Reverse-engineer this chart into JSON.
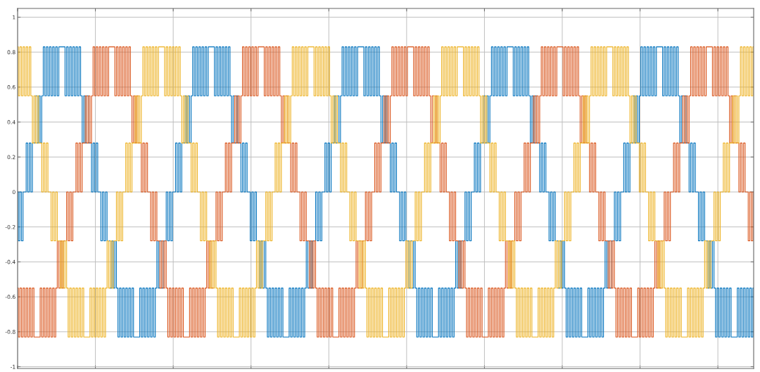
{
  "chart_data": {
    "type": "step",
    "categories": [
      null,
      null,
      null,
      null,
      null,
      null,
      null,
      null,
      null,
      null,
      null,
      null,
      null,
      null,
      null,
      null,
      null,
      null,
      null,
      null,
      null,
      null,
      null,
      null,
      null,
      null,
      null,
      null,
      null,
      null,
      null,
      null,
      null,
      null,
      null,
      null,
      null,
      null,
      null,
      null,
      null,
      null,
      null,
      null,
      null,
      null,
      null,
      null,
      null,
      null,
      null,
      null,
      null,
      null,
      null,
      null,
      null,
      null,
      null,
      null,
      null,
      null,
      null,
      null,
      null,
      null,
      null,
      null,
      null,
      null,
      null,
      null,
      null,
      null,
      null,
      null,
      null,
      null,
      null,
      null,
      null,
      null,
      null,
      null,
      null,
      null,
      null,
      null,
      null,
      null,
      null,
      null,
      null,
      null,
      null,
      null,
      null,
      null,
      null,
      null,
      null,
      null,
      null,
      null,
      null,
      null,
      null,
      null,
      null,
      null,
      null,
      null,
      null,
      null,
      null,
      null,
      null,
      null,
      null,
      null,
      null,
      null,
      null,
      null,
      null,
      null,
      null,
      null,
      null,
      null,
      null,
      null,
      null,
      null,
      null,
      null,
      null,
      null,
      null,
      null,
      null,
      null,
      null,
      null,
      null,
      null,
      null,
      null,
      null,
      null,
      null,
      null,
      null,
      null,
      null,
      null,
      null,
      null,
      null,
      null,
      null,
      null,
      null,
      null,
      null,
      null,
      null,
      null,
      null,
      null,
      null,
      null,
      null,
      null,
      null,
      null,
      null,
      null,
      null,
      null,
      null,
      null,
      null,
      null,
      null,
      null,
      null,
      null,
      null,
      null,
      null,
      null,
      null,
      null,
      null,
      null,
      null,
      null,
      null,
      null,
      null,
      null,
      null,
      null,
      null,
      null,
      null,
      null,
      null,
      null,
      null,
      null,
      null,
      null,
      null,
      null,
      null,
      null,
      null,
      null,
      null,
      null,
      null,
      null,
      null,
      null,
      null,
      null,
      null,
      null,
      null,
      null,
      null,
      null,
      null,
      null,
      null,
      null,
      null,
      null,
      null,
      null,
      null,
      null,
      null,
      null,
      null,
      null,
      null,
      null,
      null,
      null,
      null,
      null,
      null,
      null,
      null,
      null,
      null,
      null,
      null,
      null,
      null,
      null,
      null,
      null,
      null,
      null,
      null,
      null,
      null,
      null,
      null,
      null,
      null,
      null,
      null,
      null,
      null,
      null,
      null,
      null,
      null,
      null,
      null,
      null,
      null,
      null,
      null,
      null,
      null,
      null,
      null,
      null,
      null,
      null,
      null,
      null,
      null,
      null,
      null,
      null,
      null,
      null,
      null,
      null,
      null,
      null,
      null,
      null,
      null,
      null,
      null,
      null,
      null,
      null,
      null,
      null,
      null,
      null,
      null,
      null,
      null,
      null,
      null,
      null,
      null,
      null,
      null,
      null,
      null,
      null,
      null,
      null,
      null,
      null,
      null,
      null,
      null,
      null,
      null,
      null,
      null,
      null,
      null,
      null,
      null,
      null,
      null,
      null,
      null,
      null,
      null,
      null,
      null,
      null,
      null,
      null,
      null,
      null,
      null,
      null,
      null,
      null,
      null,
      null,
      null,
      null,
      null,
      null,
      null,
      null,
      null,
      null,
      null,
      null,
      null,
      null,
      null,
      null,
      null,
      null,
      null,
      null,
      null,
      null,
      null,
      null,
      null,
      null,
      null,
      null,
      null,
      null,
      null,
      null,
      null,
      null,
      null,
      null,
      null,
      null,
      null,
      null,
      null,
      null,
      null,
      null,
      null,
      null,
      null,
      null,
      null,
      null,
      null,
      null,
      null,
      null,
      null,
      null,
      null,
      null,
      null,
      null,
      null,
      null,
      null,
      null,
      null,
      null,
      null,
      null,
      null,
      null,
      null,
      null,
      null,
      null,
      null,
      null,
      null,
      null,
      null,
      null,
      null,
      null,
      null,
      null,
      null,
      null,
      null,
      null,
      null,
      null,
      null,
      null,
      null,
      null,
      null,
      null,
      null,
      null,
      null,
      null,
      null,
      null,
      null,
      null,
      null,
      null,
      null,
      null,
      null,
      null
    ],
    "series": [
      {
        "color": "#0072bd",
        "values": [
          0,
          -0.28,
          0,
          -0.28,
          0,
          0,
          0.28,
          0,
          0.28,
          0,
          0.28,
          0.28,
          0.55,
          0.28,
          0.55,
          0.28,
          0.55,
          0.83,
          0.55,
          0.83,
          0.55,
          0.83,
          0.55,
          0.83,
          0.55,
          0.83,
          0.55,
          0.83,
          0.83,
          0.83,
          0.83,
          0.55,
          0.83,
          0.55,
          0.83,
          0.55,
          0.83,
          0.55,
          0.83,
          0.55,
          0.83,
          0.55,
          0.28,
          0.55,
          0.28,
          0.55,
          0.28,
          0.28,
          0,
          0.28,
          0,
          0.28,
          0,
          0,
          -0.28,
          0,
          -0.28,
          0,
          -0.28,
          -0.28,
          -0.55,
          -0.28,
          -0.55,
          -0.28,
          -0.55,
          -0.83,
          -0.55,
          -0.83,
          -0.55,
          -0.83,
          -0.55,
          -0.83,
          -0.55,
          -0.83,
          -0.55,
          -0.83,
          -0.83,
          -0.83,
          -0.83,
          -0.55,
          -0.83,
          -0.55,
          -0.83,
          -0.55,
          -0.83,
          -0.55,
          -0.83,
          -0.55,
          -0.83,
          -0.55,
          -0.28,
          -0.55,
          -0.28,
          -0.55,
          -0.28,
          -0.28,
          0,
          -0.28,
          0,
          -0.28,
          0,
          0,
          0.28,
          0,
          0.28,
          0,
          0.28,
          0.28,
          0.55,
          0.28,
          0.55,
          0.28,
          0.55,
          0.83,
          0.55,
          0.83,
          0.55,
          0.83,
          0.55,
          0.83,
          0.55,
          0.83,
          0.55,
          0.83,
          0.83,
          0.83,
          0.83,
          0.55,
          0.83,
          0.55,
          0.83,
          0.55,
          0.83,
          0.55,
          0.83,
          0.55,
          0.83,
          0.55,
          0.28,
          0.55,
          0.28,
          0.55,
          0.28,
          0.28,
          0,
          0.28,
          0,
          0.28,
          0,
          0,
          -0.28,
          0,
          -0.28,
          0,
          -0.28,
          -0.28,
          -0.55,
          -0.28,
          -0.55,
          -0.28,
          -0.55,
          -0.83,
          -0.55,
          -0.83,
          -0.55,
          -0.83,
          -0.55,
          -0.83,
          -0.55,
          -0.83,
          -0.55,
          -0.83,
          -0.83,
          -0.83,
          -0.83,
          -0.55,
          -0.83,
          -0.55,
          -0.83,
          -0.55,
          -0.83,
          -0.55,
          -0.83,
          -0.55,
          -0.83,
          -0.55,
          -0.28,
          -0.55,
          -0.28,
          -0.55,
          -0.28,
          -0.28,
          0,
          -0.28,
          0,
          -0.28,
          0,
          0,
          0.28,
          0,
          0.28,
          0,
          0.28,
          0.28,
          0.55,
          0.28,
          0.55,
          0.28,
          0.55,
          0.83,
          0.55,
          0.83,
          0.55,
          0.83,
          0.55,
          0.83,
          0.55,
          0.83,
          0.55,
          0.83,
          0.83,
          0.83,
          0.83,
          0.55,
          0.83,
          0.55,
          0.83,
          0.55,
          0.83,
          0.55,
          0.83,
          0.55,
          0.83,
          0.55,
          0.28,
          0.55,
          0.28,
          0.55,
          0.28,
          0.28,
          0,
          0.28,
          0,
          0.28,
          0,
          0,
          -0.28,
          0,
          -0.28,
          0,
          -0.28,
          -0.28,
          -0.55,
          -0.28,
          -0.55,
          -0.28,
          -0.55,
          -0.83,
          -0.55,
          -0.83,
          -0.55,
          -0.83,
          -0.55,
          -0.83,
          -0.55,
          -0.83,
          -0.55,
          -0.83,
          -0.83,
          -0.83,
          -0.83,
          -0.55,
          -0.83,
          -0.55,
          -0.83,
          -0.55,
          -0.83,
          -0.55,
          -0.83,
          -0.55,
          -0.83,
          -0.55,
          -0.28,
          -0.55,
          -0.28,
          -0.55,
          -0.28,
          -0.28,
          0,
          -0.28,
          0,
          -0.28,
          0,
          0,
          0.28,
          0,
          0.28,
          0,
          0.28,
          0.28,
          0.55,
          0.28,
          0.55,
          0.28,
          0.55,
          0.83,
          0.55,
          0.83,
          0.55,
          0.83,
          0.55,
          0.83,
          0.55,
          0.83,
          0.55,
          0.83,
          0.83,
          0.83,
          0.83,
          0.55,
          0.83,
          0.55,
          0.83,
          0.55,
          0.83,
          0.55,
          0.83,
          0.55,
          0.83,
          0.55,
          0.28,
          0.55,
          0.28,
          0.55,
          0.28,
          0.28,
          0,
          0.28,
          0,
          0.28,
          0,
          0,
          -0.28,
          0,
          -0.28,
          0,
          -0.28,
          -0.28,
          -0.55,
          -0.28,
          -0.55,
          -0.28,
          -0.55,
          -0.83,
          -0.55,
          -0.83,
          -0.55,
          -0.83,
          -0.55,
          -0.83,
          -0.55,
          -0.83,
          -0.55,
          -0.83,
          -0.83,
          -0.83,
          -0.83,
          -0.55,
          -0.83,
          -0.55,
          -0.83,
          -0.55,
          -0.83,
          -0.55,
          -0.83,
          -0.55,
          -0.83,
          -0.55,
          -0.28,
          -0.55,
          -0.28,
          -0.55,
          -0.28,
          -0.28,
          0,
          -0.28,
          0,
          -0.28,
          0,
          0,
          0.28,
          0,
          0.28,
          0,
          0.28,
          0.28,
          0.55,
          0.28,
          0.55,
          0.28,
          0.55,
          0.83,
          0.55,
          0.83,
          0.55,
          0.83,
          0.55,
          0.83,
          0.55,
          0.83,
          0.55,
          0.83,
          0.83,
          0.83,
          0.83,
          0.55,
          0.83,
          0.55,
          0.83,
          0.55,
          0.83,
          0.55,
          0.83,
          0.55,
          0.83,
          0.55,
          0.28,
          0.55,
          0.28,
          0.55,
          0.28,
          0.28,
          0,
          0.28,
          0,
          0.28,
          0,
          0,
          -0.28,
          0,
          -0.28,
          0,
          -0.28,
          -0.28,
          -0.55,
          -0.28,
          -0.55,
          -0.28,
          -0.55,
          -0.83,
          -0.55,
          -0.83,
          -0.55,
          -0.83,
          -0.55,
          -0.83,
          -0.55,
          -0.83,
          -0.55,
          -0.83,
          -0.83,
          -0.83,
          -0.83,
          -0.55,
          -0.83,
          -0.55,
          -0.83,
          -0.55,
          -0.83,
          -0.55,
          -0.83,
          -0.55,
          -0.83,
          -0.55
        ]
      },
      {
        "color": "#d95319",
        "values": [
          -0.55,
          -0.83,
          -0.55,
          -0.83,
          -0.55,
          -0.83,
          -0.55,
          -0.83,
          -0.55,
          -0.83,
          -0.55,
          -0.83,
          -0.83,
          -0.83,
          -0.83,
          -0.55,
          -0.83,
          -0.55,
          -0.83,
          -0.55,
          -0.83,
          -0.55,
          -0.83,
          -0.55,
          -0.83,
          -0.55,
          -0.28,
          -0.55,
          -0.28,
          -0.55,
          -0.28,
          -0.28,
          0,
          -0.28,
          0,
          -0.28,
          0,
          0,
          0.28,
          0,
          0.28,
          0,
          0.28,
          0.28,
          0.55,
          0.28,
          0.55,
          0.28,
          0.55,
          0.83,
          0.55,
          0.83,
          0.55,
          0.83,
          0.55,
          0.83,
          0.55,
          0.83,
          0.55,
          0.83,
          0.83,
          0.83,
          0.83,
          0.55,
          0.83,
          0.55,
          0.83,
          0.55,
          0.83,
          0.55,
          0.83,
          0.55,
          0.83,
          0.55,
          0.28,
          0.55,
          0.28,
          0.55,
          0.28,
          0.28,
          0,
          0.28,
          0,
          0.28,
          0,
          0,
          -0.28,
          0,
          -0.28,
          0,
          -0.28,
          -0.28,
          -0.55,
          -0.28,
          -0.55,
          -0.28,
          -0.55,
          -0.83,
          -0.55,
          -0.83,
          -0.55,
          -0.83,
          -0.55,
          -0.83,
          -0.55,
          -0.83,
          -0.55,
          -0.83,
          -0.83,
          -0.83,
          -0.83,
          -0.55,
          -0.83,
          -0.55,
          -0.83,
          -0.55,
          -0.83,
          -0.55,
          -0.83,
          -0.55,
          -0.83,
          -0.55,
          -0.28,
          -0.55,
          -0.28,
          -0.55,
          -0.28,
          -0.28,
          0,
          -0.28,
          0,
          -0.28,
          0,
          0,
          0.28,
          0,
          0.28,
          0,
          0.28,
          0.28,
          0.55,
          0.28,
          0.55,
          0.28,
          0.55,
          0.83,
          0.55,
          0.83,
          0.55,
          0.83,
          0.55,
          0.83,
          0.55,
          0.83,
          0.55,
          0.83,
          0.83,
          0.83,
          0.83,
          0.55,
          0.83,
          0.55,
          0.83,
          0.55,
          0.83,
          0.55,
          0.83,
          0.55,
          0.83,
          0.55,
          0.28,
          0.55,
          0.28,
          0.55,
          0.28,
          0.28,
          0,
          0.28,
          0,
          0.28,
          0,
          0,
          -0.28,
          0,
          -0.28,
          0,
          -0.28,
          -0.28,
          -0.55,
          -0.28,
          -0.55,
          -0.28,
          -0.55,
          -0.83,
          -0.55,
          -0.83,
          -0.55,
          -0.83,
          -0.55,
          -0.83,
          -0.55,
          -0.83,
          -0.55,
          -0.83,
          -0.83,
          -0.83,
          -0.83,
          -0.55,
          -0.83,
          -0.55,
          -0.83,
          -0.55,
          -0.83,
          -0.55,
          -0.83,
          -0.55,
          -0.83,
          -0.55,
          -0.28,
          -0.55,
          -0.28,
          -0.55,
          -0.28,
          -0.28,
          0,
          -0.28,
          0,
          -0.28,
          0,
          0,
          0.28,
          0,
          0.28,
          0,
          0.28,
          0.28,
          0.55,
          0.28,
          0.55,
          0.28,
          0.55,
          0.83,
          0.55,
          0.83,
          0.55,
          0.83,
          0.55,
          0.83,
          0.55,
          0.83,
          0.55,
          0.83,
          0.83,
          0.83,
          0.83,
          0.55,
          0.83,
          0.55,
          0.83,
          0.55,
          0.83,
          0.55,
          0.83,
          0.55,
          0.83,
          0.55,
          0.28,
          0.55,
          0.28,
          0.55,
          0.28,
          0.28,
          0,
          0.28,
          0,
          0.28,
          0,
          0,
          -0.28,
          0,
          -0.28,
          0,
          -0.28,
          -0.28,
          -0.55,
          -0.28,
          -0.55,
          -0.28,
          -0.55,
          -0.83,
          -0.55,
          -0.83,
          -0.55,
          -0.83,
          -0.55,
          -0.83,
          -0.55,
          -0.83,
          -0.55,
          -0.83,
          -0.83,
          -0.83,
          -0.83,
          -0.55,
          -0.83,
          -0.55,
          -0.83,
          -0.55,
          -0.83,
          -0.55,
          -0.83,
          -0.55,
          -0.83,
          -0.55,
          -0.28,
          -0.55,
          -0.28,
          -0.55,
          -0.28,
          -0.28,
          0,
          -0.28,
          0,
          -0.28,
          0,
          0,
          0.28,
          0,
          0.28,
          0,
          0.28,
          0.28,
          0.55,
          0.28,
          0.55,
          0.28,
          0.55,
          0.83,
          0.55,
          0.83,
          0.55,
          0.83,
          0.55,
          0.83,
          0.55,
          0.83,
          0.55,
          0.83,
          0.83,
          0.83,
          0.83,
          0.55,
          0.83,
          0.55,
          0.83,
          0.55,
          0.83,
          0.55,
          0.83,
          0.55,
          0.83,
          0.55,
          0.28,
          0.55,
          0.28,
          0.55,
          0.28,
          0.28,
          0,
          0.28,
          0,
          0.28,
          0,
          0,
          -0.28,
          0,
          -0.28,
          0,
          -0.28,
          -0.28,
          -0.55,
          -0.28,
          -0.55,
          -0.28,
          -0.55,
          -0.83,
          -0.55,
          -0.83,
          -0.55,
          -0.83,
          -0.55,
          -0.83,
          -0.55,
          -0.83,
          -0.55,
          -0.83,
          -0.83,
          -0.83,
          -0.83,
          -0.55,
          -0.83,
          -0.55,
          -0.83,
          -0.55,
          -0.83,
          -0.55,
          -0.83,
          -0.55,
          -0.83,
          -0.55,
          -0.28,
          -0.55,
          -0.28,
          -0.55,
          -0.28,
          -0.28,
          0,
          -0.28,
          0,
          -0.28,
          0,
          0,
          0.28,
          0,
          0.28,
          0,
          0.28,
          0.28,
          0.55,
          0.28,
          0.55,
          0.28,
          0.55,
          0.83,
          0.55,
          0.83,
          0.55,
          0.83,
          0.55,
          0.83,
          0.55,
          0.83,
          0.55,
          0.83,
          0.83,
          0.83,
          0.83,
          0.55,
          0.83,
          0.55,
          0.83,
          0.55,
          0.83,
          0.55,
          0.83,
          0.55,
          0.83,
          0.55,
          0.28,
          0.55,
          0.28,
          0.55,
          0.28,
          0.28,
          0,
          0.28,
          0,
          0.28,
          0,
          0,
          -0.28,
          0,
          -0.28,
          0
        ]
      },
      {
        "color": "#edb120",
        "values": [
          0.83,
          0.55,
          0.83,
          0.55,
          0.83,
          0.55,
          0.83,
          0.55,
          0.83,
          0.55,
          0.28,
          0.55,
          0.28,
          0.55,
          0.28,
          0.28,
          0,
          0.28,
          0,
          0.28,
          0,
          0,
          -0.28,
          0,
          -0.28,
          0,
          -0.28,
          -0.28,
          -0.55,
          -0.28,
          -0.55,
          -0.28,
          -0.55,
          -0.83,
          -0.55,
          -0.83,
          -0.55,
          -0.83,
          -0.55,
          -0.83,
          -0.55,
          -0.83,
          -0.55,
          -0.83,
          -0.83,
          -0.83,
          -0.83,
          -0.55,
          -0.83,
          -0.55,
          -0.83,
          -0.55,
          -0.83,
          -0.55,
          -0.83,
          -0.55,
          -0.83,
          -0.55,
          -0.28,
          -0.55,
          -0.28,
          -0.55,
          -0.28,
          -0.28,
          0,
          -0.28,
          0,
          -0.28,
          0,
          0,
          0.28,
          0,
          0.28,
          0,
          0.28,
          0.28,
          0.55,
          0.28,
          0.55,
          0.28,
          0.55,
          0.83,
          0.55,
          0.83,
          0.55,
          0.83,
          0.55,
          0.83,
          0.55,
          0.83,
          0.55,
          0.83,
          0.83,
          0.83,
          0.83,
          0.55,
          0.83,
          0.55,
          0.83,
          0.55,
          0.83,
          0.55,
          0.83,
          0.55,
          0.83,
          0.55,
          0.28,
          0.55,
          0.28,
          0.55,
          0.28,
          0.28,
          0,
          0.28,
          0,
          0.28,
          0,
          0,
          -0.28,
          0,
          -0.28,
          0,
          -0.28,
          -0.28,
          -0.55,
          -0.28,
          -0.55,
          -0.28,
          -0.55,
          -0.83,
          -0.55,
          -0.83,
          -0.55,
          -0.83,
          -0.55,
          -0.83,
          -0.55,
          -0.83,
          -0.55,
          -0.83,
          -0.83,
          -0.83,
          -0.83,
          -0.55,
          -0.83,
          -0.55,
          -0.83,
          -0.55,
          -0.83,
          -0.55,
          -0.83,
          -0.55,
          -0.83,
          -0.55,
          -0.28,
          -0.55,
          -0.28,
          -0.55,
          -0.28,
          -0.28,
          0,
          -0.28,
          0,
          -0.28,
          0,
          0,
          0.28,
          0,
          0.28,
          0,
          0.28,
          0.28,
          0.55,
          0.28,
          0.55,
          0.28,
          0.55,
          0.83,
          0.55,
          0.83,
          0.55,
          0.83,
          0.55,
          0.83,
          0.55,
          0.83,
          0.55,
          0.83,
          0.83,
          0.83,
          0.83,
          0.55,
          0.83,
          0.55,
          0.83,
          0.55,
          0.83,
          0.55,
          0.83,
          0.55,
          0.83,
          0.55,
          0.28,
          0.55,
          0.28,
          0.55,
          0.28,
          0.28,
          0,
          0.28,
          0,
          0.28,
          0,
          0,
          -0.28,
          0,
          -0.28,
          0,
          -0.28,
          -0.28,
          -0.55,
          -0.28,
          -0.55,
          -0.28,
          -0.55,
          -0.83,
          -0.55,
          -0.83,
          -0.55,
          -0.83,
          -0.55,
          -0.83,
          -0.55,
          -0.83,
          -0.55,
          -0.83,
          -0.83,
          -0.83,
          -0.83,
          -0.55,
          -0.83,
          -0.55,
          -0.83,
          -0.55,
          -0.83,
          -0.55,
          -0.83,
          -0.55,
          -0.83,
          -0.55,
          -0.28,
          -0.55,
          -0.28,
          -0.55,
          -0.28,
          -0.28,
          0,
          -0.28,
          0,
          -0.28,
          0,
          0,
          0.28,
          0,
          0.28,
          0,
          0.28,
          0.28,
          0.55,
          0.28,
          0.55,
          0.28,
          0.55,
          0.83,
          0.55,
          0.83,
          0.55,
          0.83,
          0.55,
          0.83,
          0.55,
          0.83,
          0.55,
          0.83,
          0.83,
          0.83,
          0.83,
          0.55,
          0.83,
          0.55,
          0.83,
          0.55,
          0.83,
          0.55,
          0.83,
          0.55,
          0.83,
          0.55,
          0.28,
          0.55,
          0.28,
          0.55,
          0.28,
          0.28,
          0,
          0.28,
          0,
          0.28,
          0,
          0,
          -0.28,
          0,
          -0.28,
          0,
          -0.28,
          -0.28,
          -0.55,
          -0.28,
          -0.55,
          -0.28,
          -0.55,
          -0.83,
          -0.55,
          -0.83,
          -0.55,
          -0.83,
          -0.55,
          -0.83,
          -0.55,
          -0.83,
          -0.55,
          -0.83,
          -0.83,
          -0.83,
          -0.83,
          -0.55,
          -0.83,
          -0.55,
          -0.83,
          -0.55,
          -0.83,
          -0.55,
          -0.83,
          -0.55,
          -0.83,
          -0.55,
          -0.28,
          -0.55,
          -0.28,
          -0.55,
          -0.28,
          -0.28,
          0,
          -0.28,
          0,
          -0.28,
          0,
          0,
          0.28,
          0,
          0.28,
          0,
          0.28,
          0.28,
          0.55,
          0.28,
          0.55,
          0.28,
          0.55,
          0.83,
          0.55,
          0.83,
          0.55,
          0.83,
          0.55,
          0.83,
          0.55,
          0.83,
          0.55,
          0.83,
          0.83,
          0.83,
          0.83,
          0.55,
          0.83,
          0.55,
          0.83,
          0.55,
          0.83,
          0.55,
          0.83,
          0.55,
          0.83,
          0.55,
          0.28,
          0.55,
          0.28,
          0.55,
          0.28,
          0.28,
          0,
          0.28,
          0,
          0.28,
          0,
          0,
          -0.28,
          0,
          -0.28,
          0,
          -0.28,
          -0.28,
          -0.55,
          -0.28,
          -0.55,
          -0.28,
          -0.55,
          -0.83,
          -0.55,
          -0.83,
          -0.55,
          -0.83,
          -0.55,
          -0.83,
          -0.55,
          -0.83,
          -0.55,
          -0.83,
          -0.83,
          -0.83,
          -0.83,
          -0.55,
          -0.83,
          -0.55,
          -0.83,
          -0.55,
          -0.83,
          -0.55,
          -0.83,
          -0.55,
          -0.83,
          -0.55,
          -0.28,
          -0.55,
          -0.28,
          -0.55,
          -0.28,
          -0.28,
          0,
          -0.28,
          0,
          -0.28,
          0,
          0,
          0.28,
          0,
          0.28,
          0,
          0.28,
          0.28,
          0.55,
          0.28,
          0.55,
          0.28,
          0.55,
          0.83,
          0.55,
          0.83,
          0.55,
          0.83,
          0.55,
          0.83,
          0.55,
          0.83
        ]
      }
    ],
    "ylim": [
      -1.01,
      1.05
    ],
    "yticks": [
      -1,
      -0.8,
      -0.6,
      -0.4,
      -0.2,
      0,
      0.2,
      0.4,
      0.6,
      0.8,
      1
    ],
    "grid": true,
    "tick_labels": "y"
  }
}
